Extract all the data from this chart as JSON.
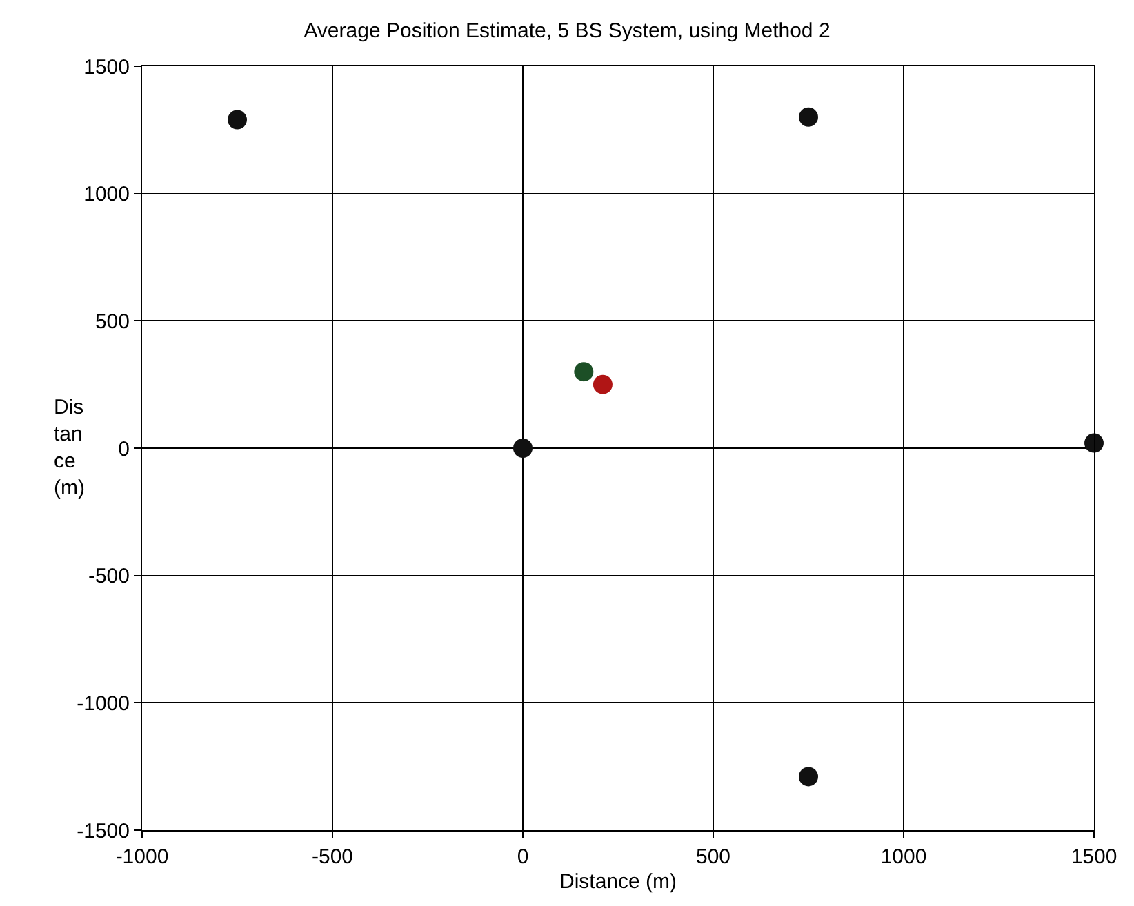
{
  "chart_data": {
    "type": "scatter",
    "title": "Average Position Estimate, 5 BS System, using Method 2",
    "xlabel": "Distance (m)",
    "ylabel": "Dis\ntan\nce\n(m)",
    "series": [
      {
        "color": "#111111",
        "x": [
          -750,
          750,
          0,
          1500,
          750
        ],
        "values": [
          1290,
          1300,
          0,
          20,
          -1290
        ]
      },
      {
        "color": "#1c4f26",
        "x": [
          160
        ],
        "values": [
          300
        ]
      },
      {
        "color": "#b01515",
        "x": [
          210
        ],
        "values": [
          250
        ]
      }
    ],
    "xlim": [
      -1000,
      1500
    ],
    "xticks": [
      -1000,
      -500,
      0,
      500,
      1000,
      1500
    ],
    "ylim": [
      -1500,
      1500
    ],
    "yticks": [
      -1500,
      -1000,
      -500,
      0,
      500,
      1000,
      1500
    ],
    "grid": true,
    "marker": "circle"
  }
}
